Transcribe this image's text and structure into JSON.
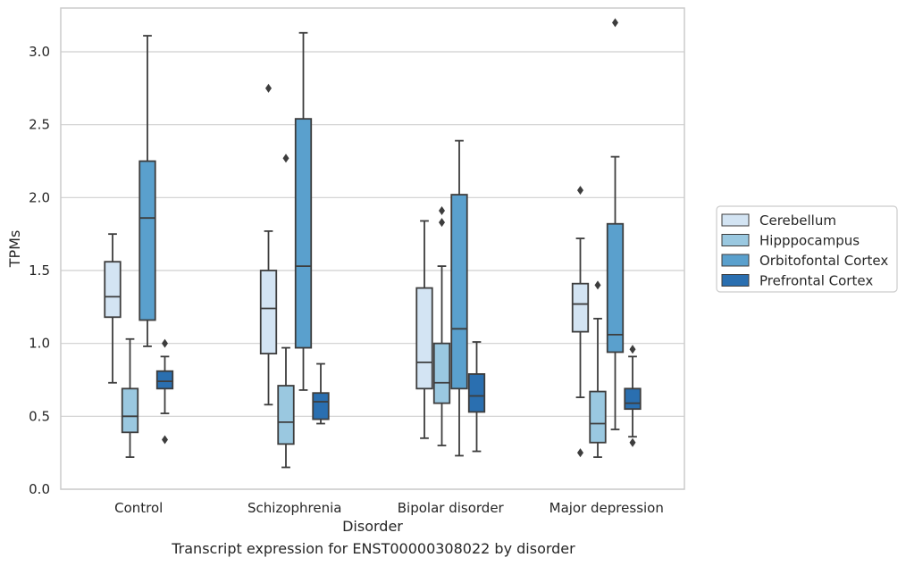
{
  "caption": "Transcript expression for ENST00000308022 by disorder",
  "chart_data": {
    "type": "box",
    "title": "",
    "xlabel": "Disorder",
    "ylabel": "TPMs",
    "ylim": [
      0,
      3.3
    ],
    "yticks": [
      "0.0",
      "0.5",
      "1.0",
      "1.5",
      "2.0",
      "2.5",
      "3.0"
    ],
    "grid": "horizontal",
    "legend_position": "right",
    "categories": [
      "Control",
      "Schizophrenia",
      "Bipolar disorder",
      "Major depression"
    ],
    "series": [
      {
        "name": "Cerebellum",
        "color": "#d3e4f3",
        "boxes": [
          {
            "whislo": 0.73,
            "q1": 1.18,
            "med": 1.32,
            "q3": 1.56,
            "whishi": 1.75,
            "fliers": []
          },
          {
            "whislo": 0.58,
            "q1": 0.93,
            "med": 1.24,
            "q3": 1.5,
            "whishi": 1.77,
            "fliers": [
              2.75
            ]
          },
          {
            "whislo": 0.35,
            "q1": 0.69,
            "med": 0.87,
            "q3": 1.38,
            "whishi": 1.84,
            "fliers": []
          },
          {
            "whislo": 0.63,
            "q1": 1.08,
            "med": 1.27,
            "q3": 1.41,
            "whishi": 1.72,
            "fliers": [
              2.05,
              0.25
            ]
          }
        ]
      },
      {
        "name": "Hipppocampus",
        "color": "#9ac8e0",
        "boxes": [
          {
            "whislo": 0.22,
            "q1": 0.39,
            "med": 0.5,
            "q3": 0.69,
            "whishi": 1.03,
            "fliers": []
          },
          {
            "whislo": 0.15,
            "q1": 0.31,
            "med": 0.46,
            "q3": 0.71,
            "whishi": 0.97,
            "fliers": [
              2.27
            ]
          },
          {
            "whislo": 0.3,
            "q1": 0.59,
            "med": 0.73,
            "q3": 1.0,
            "whishi": 1.53,
            "fliers": [
              1.91,
              1.83
            ]
          },
          {
            "whislo": 0.22,
            "q1": 0.32,
            "med": 0.45,
            "q3": 0.67,
            "whishi": 1.17,
            "fliers": [
              1.4
            ]
          }
        ]
      },
      {
        "name": "Orbitofontal Cortex",
        "color": "#5aa0cd",
        "boxes": [
          {
            "whislo": 0.98,
            "q1": 1.16,
            "med": 1.86,
            "q3": 2.25,
            "whishi": 3.11,
            "fliers": []
          },
          {
            "whislo": 0.68,
            "q1": 0.97,
            "med": 1.53,
            "q3": 2.54,
            "whishi": 3.13,
            "fliers": []
          },
          {
            "whislo": 0.23,
            "q1": 0.69,
            "med": 1.1,
            "q3": 2.02,
            "whishi": 2.39,
            "fliers": []
          },
          {
            "whislo": 0.41,
            "q1": 0.94,
            "med": 1.06,
            "q3": 1.82,
            "whishi": 2.28,
            "fliers": [
              3.2
            ]
          }
        ]
      },
      {
        "name": "Prefrontal Cortex",
        "color": "#2a6fb0",
        "boxes": [
          {
            "whislo": 0.52,
            "q1": 0.69,
            "med": 0.74,
            "q3": 0.81,
            "whishi": 0.91,
            "fliers": [
              1.0,
              0.34
            ]
          },
          {
            "whislo": 0.45,
            "q1": 0.48,
            "med": 0.6,
            "q3": 0.66,
            "whishi": 0.86,
            "fliers": []
          },
          {
            "whislo": 0.26,
            "q1": 0.53,
            "med": 0.64,
            "q3": 0.79,
            "whishi": 1.01,
            "fliers": []
          },
          {
            "whislo": 0.36,
            "q1": 0.55,
            "med": 0.59,
            "q3": 0.69,
            "whishi": 0.91,
            "fliers": [
              0.96,
              0.32
            ]
          }
        ]
      }
    ]
  }
}
